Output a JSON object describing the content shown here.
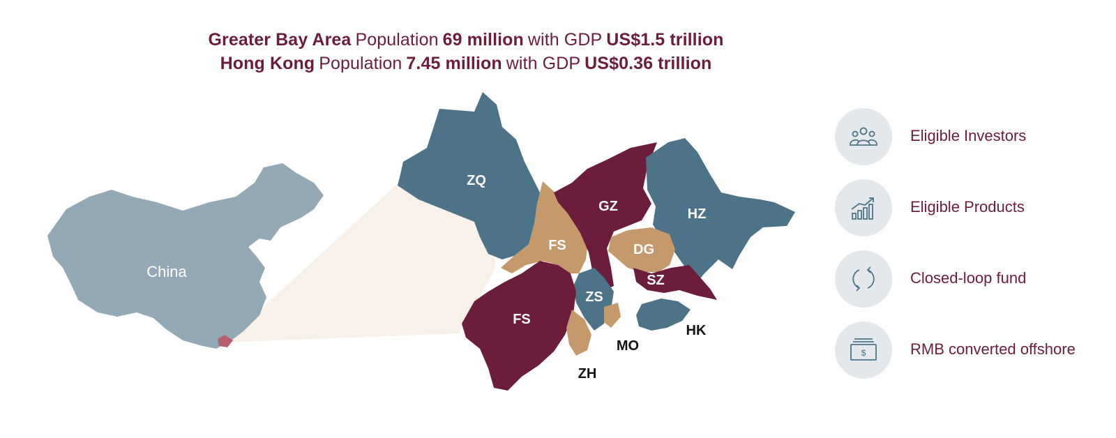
{
  "headline": {
    "line1": {
      "region": "Greater Bay Area",
      "pop_word": "Population",
      "pop_value": "69 million",
      "with_gdp": "with GDP",
      "gdp_value": "US$1.5 trillion"
    },
    "line2": {
      "region": "Hong Kong",
      "pop_word": "Population",
      "pop_value": "7.45 million",
      "with_gdp": "with GDP",
      "gdp_value": "US$0.36 trillion"
    }
  },
  "map": {
    "china_label": "China",
    "regions": [
      {
        "code": "ZQ",
        "color": "#4d7389"
      },
      {
        "code": "GZ",
        "color": "#6c1d3c"
      },
      {
        "code": "HZ",
        "color": "#4d7389"
      },
      {
        "code": "FS",
        "color": "#c49a6c"
      },
      {
        "code": "DG",
        "color": "#c49a6c"
      },
      {
        "code": "SZ",
        "color": "#6c1d3c"
      },
      {
        "code": "ZS",
        "color": "#4d7389"
      },
      {
        "code": "FS",
        "color": "#6c1d3c"
      }
    ],
    "outside_labels": [
      "HK",
      "MO",
      "ZH"
    ],
    "colors": {
      "china": "#94a9b6",
      "highlight": "#b6606f",
      "callout": "#f8f1ea",
      "text": "#6c1d3c"
    }
  },
  "features": [
    {
      "icon": "people-icon",
      "label": "Eligible Investors"
    },
    {
      "icon": "growth-chart-icon",
      "label": "Eligible Products"
    },
    {
      "icon": "refresh-cycle-icon",
      "label": "Closed-loop fund"
    },
    {
      "icon": "banknote-icon",
      "label": "RMB converted offshore"
    }
  ]
}
